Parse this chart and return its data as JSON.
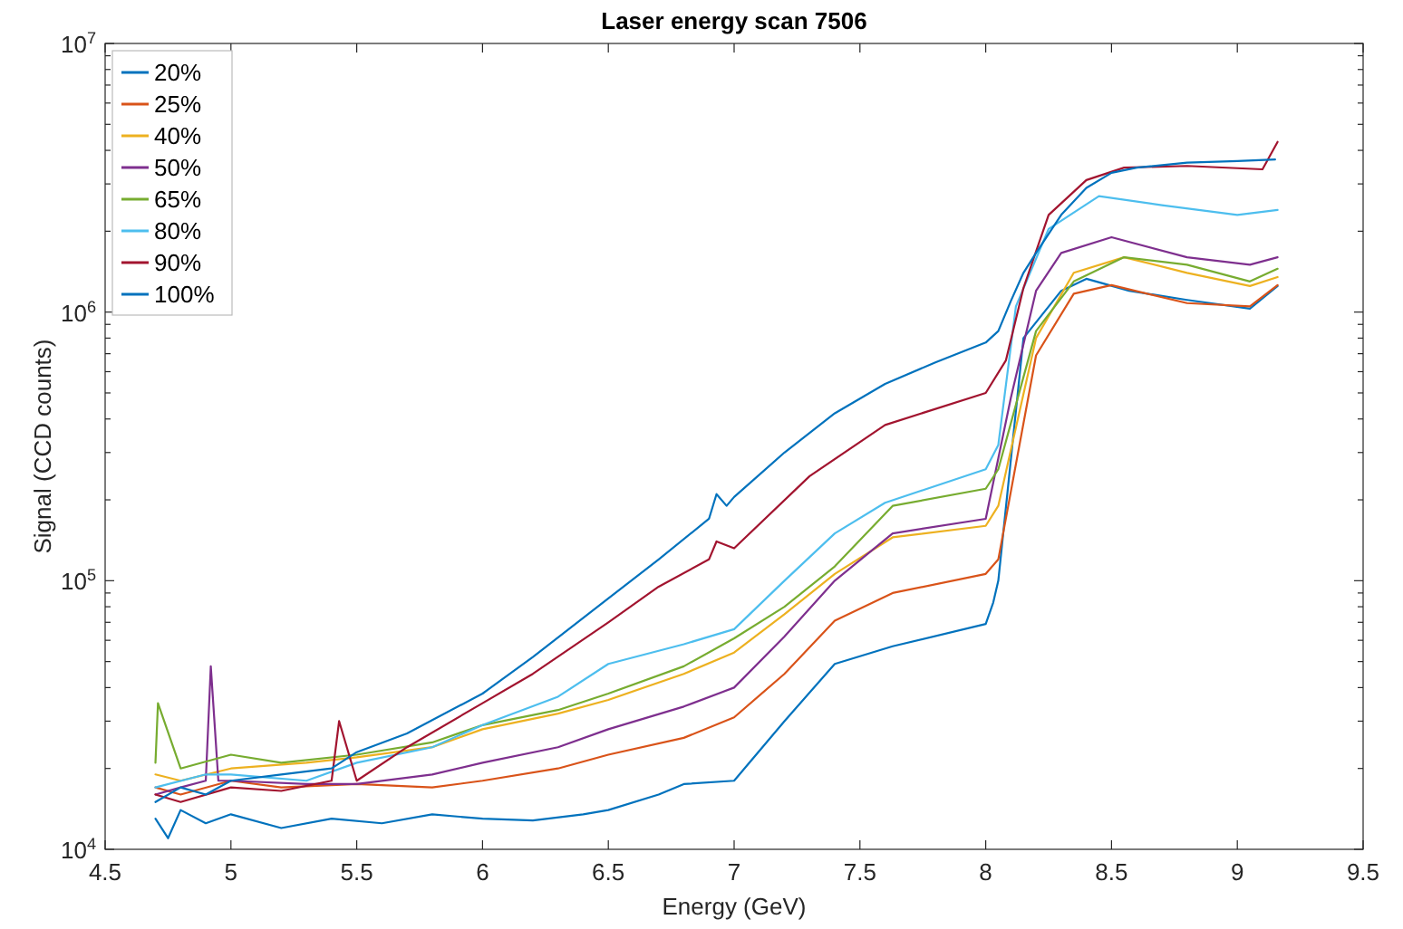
{
  "chart_data": {
    "type": "line",
    "title": "Laser energy scan 7506",
    "xlabel": "Energy (GeV)",
    "ylabel": "Signal (CCD counts)",
    "log": "y",
    "grid": false,
    "legend": "top left",
    "line_style": "solid",
    "marker": "none",
    "xlim": [
      4.5,
      9.5
    ],
    "xticks": [
      4.5,
      5,
      5.5,
      6,
      6.5,
      7,
      7.5,
      8,
      8.5,
      9,
      9.5
    ],
    "ylim": [
      10000,
      10000000
    ],
    "yticks": [
      {
        "value": 10000,
        "label": "10$^{4}$"
      },
      {
        "value": 20000,
        "label": null
      },
      {
        "value": 30000,
        "label": null
      },
      {
        "value": 40000,
        "label": null
      },
      {
        "value": 50000,
        "label": null
      },
      {
        "value": 60000,
        "label": null
      },
      {
        "value": 70000,
        "label": null
      },
      {
        "value": 80000,
        "label": null
      },
      {
        "value": 90000,
        "label": null
      },
      {
        "value": 100000,
        "label": "10$^{5}$"
      },
      {
        "value": 200000,
        "label": null
      },
      {
        "value": 300000,
        "label": null
      },
      {
        "value": 400000,
        "label": null
      },
      {
        "value": 500000,
        "label": null
      },
      {
        "value": 600000,
        "label": null
      },
      {
        "value": 700000,
        "label": null
      },
      {
        "value": 800000,
        "label": null
      },
      {
        "value": 900000,
        "label": null
      },
      {
        "value": 1000000,
        "label": "10$^{6}$"
      },
      {
        "value": 2000000,
        "label": null
      },
      {
        "value": 3000000,
        "label": null
      },
      {
        "value": 4000000,
        "label": null
      },
      {
        "value": 5000000,
        "label": null
      },
      {
        "value": 6000000,
        "label": null
      },
      {
        "value": 7000000,
        "label": null
      },
      {
        "value": 8000000,
        "label": null
      },
      {
        "value": 9000000,
        "label": null
      },
      {
        "value": 10000000,
        "label": "10$^{7}$"
      }
    ],
    "series": [
      {
        "name": "20%",
        "color": "#0072bd",
        "x": [
          4.7,
          4.75,
          4.8,
          4.9,
          5.0,
          5.2,
          5.4,
          5.6,
          5.8,
          6.0,
          6.2,
          6.4,
          6.5,
          6.7,
          6.8,
          7.0,
          7.2,
          7.4,
          7.63,
          8.0,
          8.03,
          8.05,
          8.15,
          8.3,
          8.4,
          8.57,
          8.8,
          9.05,
          9.16
        ],
        "values": [
          13000,
          11000,
          14000,
          12500,
          13500,
          12000,
          13000,
          12500,
          13500,
          13000,
          12800,
          13500,
          14000,
          16000,
          17500,
          18000,
          30000,
          49000,
          57000,
          69000,
          83000,
          100000,
          800000,
          1200000,
          1330000,
          1200000,
          1110000,
          1030000,
          1250000
        ]
      },
      {
        "name": "25%",
        "color": "#d95319",
        "x": [
          4.7,
          4.8,
          5.0,
          5.2,
          5.5,
          5.8,
          6.0,
          6.3,
          6.5,
          6.8,
          7.0,
          7.2,
          7.4,
          7.63,
          8.0,
          8.05,
          8.2,
          8.35,
          8.5,
          8.8,
          9.05,
          9.16
        ],
        "values": [
          17000,
          16000,
          18000,
          17000,
          17500,
          17000,
          18000,
          20000,
          22500,
          26000,
          31000,
          45000,
          71000,
          90000,
          106000,
          120000,
          690000,
          1170000,
          1260000,
          1080000,
          1050000,
          1260000
        ]
      },
      {
        "name": "40%",
        "color": "#edb120",
        "x": [
          4.7,
          4.8,
          5.0,
          5.3,
          5.5,
          5.8,
          6.0,
          6.3,
          6.5,
          6.8,
          7.0,
          7.2,
          7.4,
          7.63,
          8.0,
          8.05,
          8.2,
          8.35,
          8.55,
          8.8,
          9.05,
          9.16
        ],
        "values": [
          19000,
          18000,
          20000,
          21000,
          22000,
          24000,
          28000,
          32000,
          36000,
          45000,
          54000,
          75000,
          106000,
          145000,
          160000,
          190000,
          800000,
          1400000,
          1600000,
          1400000,
          1250000,
          1350000
        ]
      },
      {
        "name": "50%",
        "color": "#7e2f8e",
        "x": [
          4.7,
          4.8,
          4.9,
          4.92,
          4.95,
          5.0,
          5.3,
          5.5,
          5.8,
          6.0,
          6.3,
          6.5,
          6.8,
          7.0,
          7.2,
          7.4,
          7.63,
          8.0,
          8.1,
          8.2,
          8.3,
          8.5,
          8.8,
          9.05,
          9.16
        ],
        "values": [
          16000,
          17000,
          18000,
          48000,
          18000,
          18000,
          17500,
          17500,
          19000,
          21000,
          24000,
          28000,
          34000,
          40000,
          62000,
          100000,
          150000,
          170000,
          480000,
          1200000,
          1660000,
          1900000,
          1600000,
          1500000,
          1600000
        ]
      },
      {
        "name": "65%",
        "color": "#77ac30",
        "x": [
          4.7,
          4.71,
          4.8,
          5.0,
          5.2,
          5.5,
          5.8,
          6.0,
          6.3,
          6.5,
          6.8,
          7.0,
          7.2,
          7.4,
          7.63,
          8.0,
          8.05,
          8.2,
          8.35,
          8.55,
          8.8,
          9.05,
          9.16
        ],
        "values": [
          21000,
          35000,
          20000,
          22500,
          21000,
          22500,
          25000,
          29000,
          33000,
          38000,
          48000,
          61000,
          80000,
          113000,
          190000,
          220000,
          260000,
          850000,
          1300000,
          1600000,
          1500000,
          1300000,
          1450000
        ]
      },
      {
        "name": "80%",
        "color": "#4dbeee",
        "x": [
          4.7,
          4.9,
          5.0,
          5.3,
          5.5,
          5.8,
          6.0,
          6.3,
          6.5,
          6.8,
          7.0,
          7.2,
          7.4,
          7.6,
          8.0,
          8.05,
          8.12,
          8.25,
          8.45,
          8.7,
          9.0,
          9.16
        ],
        "values": [
          17000,
          19000,
          19000,
          18000,
          21000,
          24000,
          29000,
          37000,
          49000,
          58000,
          66000,
          100000,
          150000,
          195000,
          260000,
          320000,
          1050000,
          2040000,
          2700000,
          2500000,
          2300000,
          2400000
        ]
      },
      {
        "name": "90%",
        "color": "#a2142f",
        "x": [
          4.7,
          4.8,
          5.0,
          5.2,
          5.4,
          5.43,
          5.5,
          5.7,
          6.0,
          6.2,
          6.5,
          6.7,
          6.9,
          6.93,
          7.0,
          7.3,
          7.6,
          8.0,
          8.08,
          8.15,
          8.25,
          8.4,
          8.55,
          8.8,
          9.1,
          9.16
        ],
        "values": [
          16000,
          15000,
          17000,
          16500,
          18000,
          30000,
          18000,
          24000,
          35000,
          45000,
          70000,
          95000,
          120000,
          140000,
          132000,
          245000,
          380000,
          500000,
          660000,
          1230000,
          2300000,
          3100000,
          3450000,
          3500000,
          3400000,
          4300000
        ]
      },
      {
        "name": "100%",
        "color": "#0072bd",
        "x": [
          4.7,
          4.8,
          4.9,
          5.0,
          5.2,
          5.4,
          5.5,
          5.7,
          6.0,
          6.2,
          6.5,
          6.7,
          6.9,
          6.93,
          6.97,
          7.0,
          7.2,
          7.4,
          7.6,
          7.8,
          8.0,
          8.05,
          8.1,
          8.15,
          8.2,
          8.3,
          8.4,
          8.5,
          8.6,
          8.8,
          9.0,
          9.15
        ],
        "values": [
          15000,
          17000,
          16000,
          18000,
          19000,
          20000,
          23000,
          27000,
          38000,
          52000,
          86000,
          120000,
          170000,
          210000,
          190000,
          205000,
          300000,
          420000,
          540000,
          650000,
          770000,
          850000,
          1100000,
          1400000,
          1660000,
          2300000,
          2900000,
          3300000,
          3450000,
          3600000,
          3650000,
          3700000
        ]
      }
    ]
  }
}
